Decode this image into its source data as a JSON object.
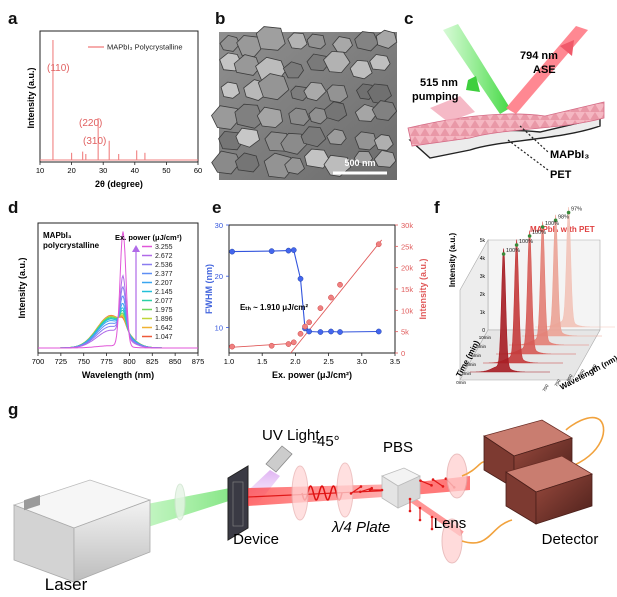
{
  "panels": {
    "a": {
      "label": "a",
      "legend": "MAPbI₃ Polycrystalline",
      "peaks": [
        "(110)",
        "(220)",
        "(310)"
      ],
      "xlabel": "2θ (degree)",
      "ylabel": "Intensity (a.u.)",
      "xticks": [
        "10",
        "20",
        "30",
        "40",
        "50",
        "60"
      ]
    },
    "b": {
      "label": "b",
      "scalebar": "500 nm"
    },
    "c": {
      "label": "c",
      "pump_label_1": "515 nm",
      "pump_label_2": "pumping",
      "ase_label_1": "794 nm",
      "ase_label_2": "ASE",
      "layer_label": "MAPbI₃",
      "substrate_label": "PET"
    },
    "d": {
      "label": "d",
      "sample_1": "MAPbI₃",
      "sample_2": "polycrystalline",
      "legend_title": "Ex. power (μJ/cm²)",
      "xlabel": "Wavelength (nm)",
      "ylabel": "Intensity (a.u.)",
      "xticks": [
        "700",
        "725",
        "750",
        "775",
        "800",
        "825",
        "850",
        "875"
      ]
    },
    "e": {
      "label": "e",
      "threshold": "Eₜₕ ~ 1.910 μJ/cm²",
      "xlabel": "Ex. power (μJ/cm²)",
      "ylabel_left": "FWHM (nm)",
      "ylabel_right": "Intensity (a.u.)",
      "xticks": [
        "1.0",
        "1.5",
        "2.0",
        "2.5",
        "3.0",
        "3.5"
      ],
      "yticks_left": [
        "10",
        "20",
        "30"
      ],
      "yticks_right": [
        "0",
        "5k",
        "10k",
        "15k",
        "20k",
        "25k",
        "30k"
      ]
    },
    "f": {
      "label": "f",
      "title": "MAPbI₃ with PET",
      "percents": [
        "100%",
        "100%",
        "100%",
        "100%",
        "98%",
        "97%"
      ],
      "xlabel": "Time (min)",
      "zlabel": "Wavelength (nm)",
      "ylabel": "Intensity (a.u.)",
      "time_ticks": [
        "0min",
        "2min",
        "4min",
        "6min",
        "8min",
        "10min"
      ],
      "wl_ticks": [
        "700",
        "750",
        "800",
        "850",
        "900"
      ],
      "int_ticks": [
        "0",
        "1k",
        "2k",
        "3k",
        "4k",
        "5k"
      ]
    },
    "g": {
      "label": "g",
      "uv_light": "UV Light",
      "angle": "-45°",
      "pbs": "PBS",
      "device": "Device",
      "qwp": "λ/4 Plate",
      "lens": "Lens",
      "detector": "Detector",
      "laser": "Laser"
    }
  },
  "chart_data": [
    {
      "panel": "a",
      "type": "line",
      "xlabel": "2θ (degree)",
      "ylabel": "Intensity (a.u.)",
      "xlim": [
        10,
        60
      ],
      "series": [
        {
          "name": "MAPbI₃ Polycrystalline",
          "x": [
            14.1,
            20.0,
            23.5,
            24.5,
            28.4,
            31.9,
            34.9,
            40.6,
            43.2
          ],
          "y": [
            1.0,
            0.06,
            0.07,
            0.05,
            0.35,
            0.16,
            0.05,
            0.08,
            0.06
          ]
        }
      ],
      "annotations": [
        "(110)",
        "(220)",
        "(310)"
      ],
      "grid": false
    },
    {
      "panel": "d",
      "type": "line",
      "xlabel": "Wavelength (nm)",
      "ylabel": "Intensity (a.u.)",
      "xlim": [
        700,
        875
      ],
      "legend": "right",
      "powers": [
        "3.255",
        "2.672",
        "2.536",
        "2.377",
        "2.207",
        "2.145",
        "2.077",
        "1.975",
        "1.896",
        "1.642",
        "1.047"
      ],
      "peak_heights": [
        1.0,
        0.52,
        0.4,
        0.3,
        0.22,
        0.17,
        0.14,
        0.11,
        0.09,
        0.075,
        0.06
      ],
      "colors": [
        "#e056d8",
        "#b06ae8",
        "#8a7cf0",
        "#5e8ef5",
        "#3aa6f0",
        "#22c0d8",
        "#2ad0a6",
        "#6ed65a",
        "#c0d638",
        "#f0b232",
        "#ee5a3a"
      ]
    },
    {
      "panel": "e",
      "type": "scatter",
      "xlabel": "Ex. power (μJ/cm²)",
      "xlim": [
        1.0,
        3.5
      ],
      "series": [
        {
          "name": "FWHM (nm)",
          "axis": "left",
          "ylim": [
            5,
            30
          ],
          "x": [
            1.047,
            1.642,
            1.896,
            1.975,
            2.077,
            2.145,
            2.207,
            2.377,
            2.536,
            2.672,
            3.255
          ],
          "y": [
            24.8,
            24.9,
            25.0,
            25.1,
            19.5,
            9.8,
            9.2,
            9.1,
            9.2,
            9.1,
            9.2
          ]
        },
        {
          "name": "Intensity (a.u.)",
          "axis": "right",
          "ylim": [
            0,
            30000
          ],
          "x": [
            1.047,
            1.642,
            1.896,
            1.975,
            2.077,
            2.145,
            2.207,
            2.377,
            2.536,
            2.672,
            3.255
          ],
          "y": [
            1500,
            1700,
            2100,
            2500,
            4500,
            6200,
            7200,
            10500,
            13000,
            16000,
            25500
          ]
        }
      ],
      "grid": false
    },
    {
      "panel": "f",
      "type": "line",
      "title": "MAPbI₃ with PET",
      "xlabel": "Time (min)",
      "zlabel": "Wavelength (nm)",
      "ylabel": "Intensity (a.u.)",
      "times": [
        "0min",
        "2min",
        "4min",
        "6min",
        "8min",
        "10min"
      ],
      "retention": [
        100,
        100,
        100,
        100,
        98,
        97
      ],
      "colors": [
        "#a61d24",
        "#c43a3a",
        "#d65a55",
        "#e37f75",
        "#eba396",
        "#f2c3b8"
      ]
    }
  ]
}
